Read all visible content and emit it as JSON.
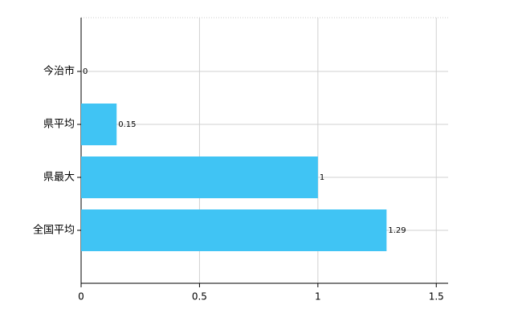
{
  "chart_data": {
    "type": "bar",
    "orientation": "horizontal",
    "categories": [
      "今治市",
      "県平均",
      "県最大",
      "全国平均"
    ],
    "values": [
      0,
      0.15,
      1,
      1.29
    ],
    "color": "#40c4f4",
    "xlim": [
      0,
      1.55
    ],
    "xticks": [
      0,
      0.5,
      1,
      1.5
    ],
    "grid": true
  }
}
